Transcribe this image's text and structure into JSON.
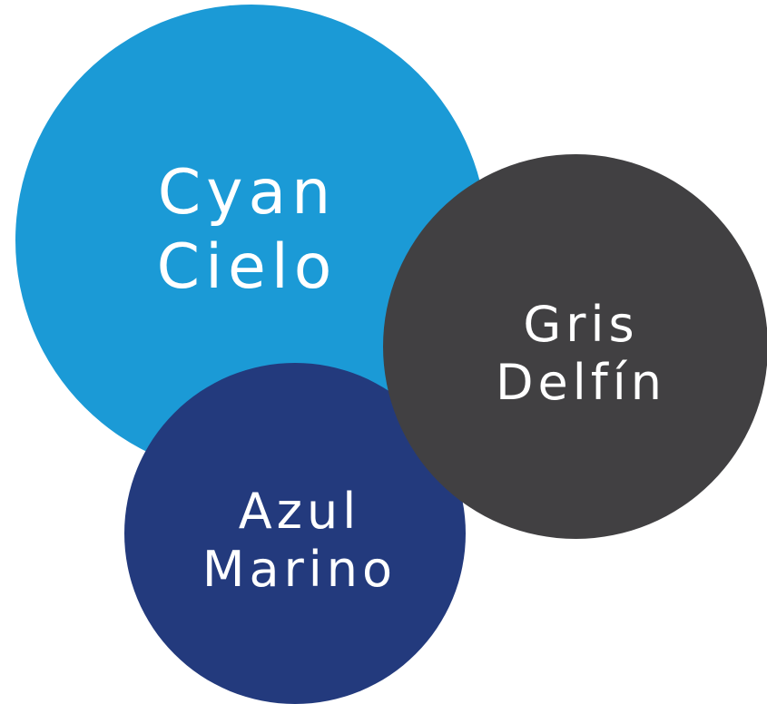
{
  "circles": [
    {
      "lines": [
        "Cyan",
        "Cielo"
      ],
      "color": "#1b9ad6"
    },
    {
      "lines": [
        "Azul",
        "Marino"
      ],
      "color": "#233a7d"
    },
    {
      "lines": [
        "Gris",
        "Delfín"
      ],
      "color": "#414042"
    }
  ]
}
